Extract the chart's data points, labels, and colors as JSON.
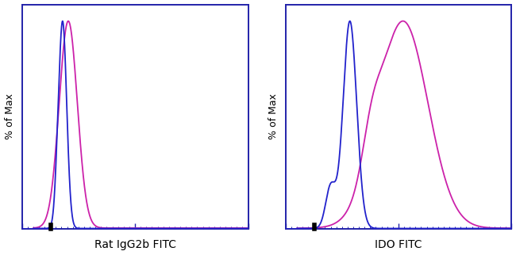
{
  "fig_width": 6.5,
  "fig_height": 3.22,
  "dpi": 100,
  "background_color": "#ffffff",
  "panel_left": {
    "xlabel": "Rat IgG2b FITC",
    "ylabel": "% of Max"
  },
  "panel_right": {
    "xlabel": "IDO FITC",
    "ylabel": "% of Max"
  },
  "blue_color": "#2222cc",
  "magenta_color": "#cc22aa",
  "line_width": 1.3,
  "spine_color": "#2222aa",
  "xlabel_fontsize": 10,
  "ylabel_fontsize": 9
}
